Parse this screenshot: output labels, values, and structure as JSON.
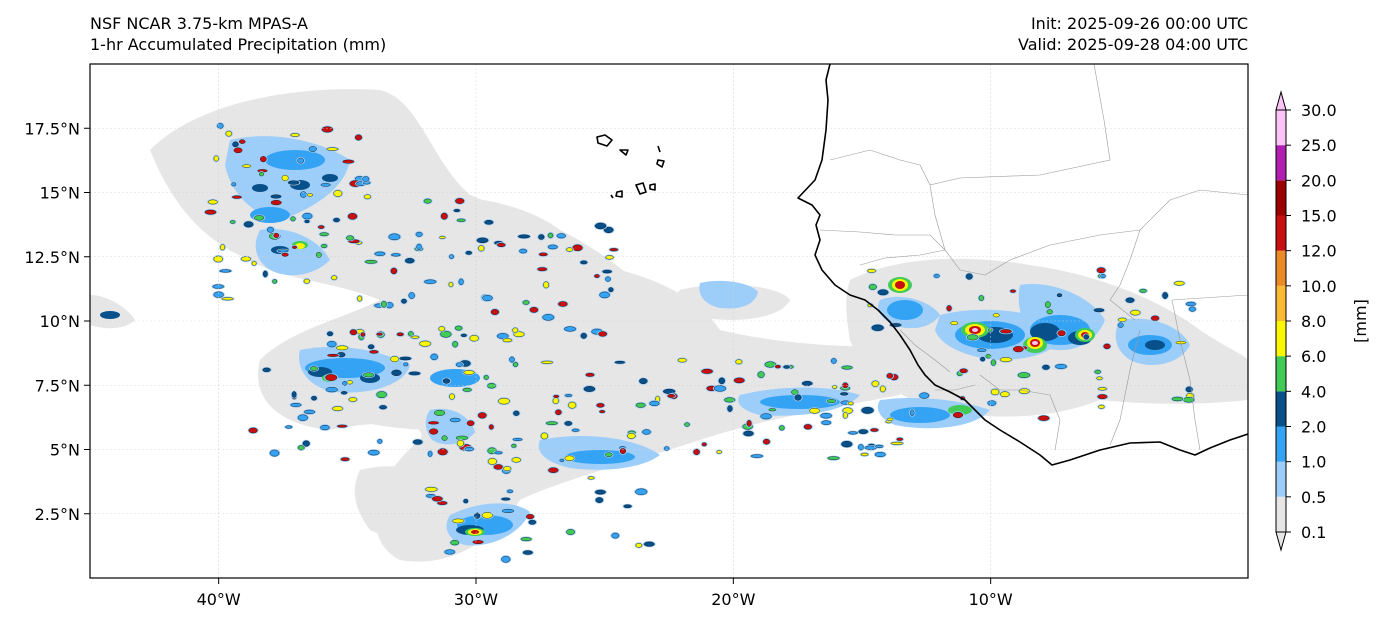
{
  "header": {
    "model_title": "NSF NCAR 3.75-km MPAS-A",
    "field_title": "1-hr Accumulated Precipitation (mm)",
    "init_time": "Init: 2025-09-26 00:00 UTC",
    "valid_time": "Valid: 2025-09-28 04:00 UTC"
  },
  "map": {
    "lon_range": [
      -45,
      0
    ],
    "lat_range": [
      0,
      20
    ],
    "x_ticks": [
      {
        "lon": -40,
        "label": "40°W"
      },
      {
        "lon": -30,
        "label": "30°W"
      },
      {
        "lon": -20,
        "label": "20°W"
      },
      {
        "lon": -10,
        "label": "10°W"
      }
    ],
    "y_ticks": [
      {
        "lat": 17.5,
        "label": "17.5°N"
      },
      {
        "lat": 15,
        "label": "15°N"
      },
      {
        "lat": 12.5,
        "label": "12.5°N"
      },
      {
        "lat": 10,
        "label": "10°N"
      },
      {
        "lat": 7.5,
        "label": "7.5°N"
      },
      {
        "lat": 5,
        "label": "5°N"
      },
      {
        "lat": 2.5,
        "label": "2.5°N"
      }
    ],
    "gridlines": true
  },
  "colorbar": {
    "label": "[mm]",
    "levels": [
      "0.1",
      "0.5",
      "1.0",
      "2.0",
      "4.0",
      "6.0",
      "8.0",
      "10.0",
      "12.0",
      "15.0",
      "20.0",
      "25.0",
      "30.0"
    ],
    "colors": [
      "#e6e6e6",
      "#9dcdf9",
      "#35a3f4",
      "#08508a",
      "#3fcb55",
      "#fbf700",
      "#fbb934",
      "#eb8b28",
      "#c81010",
      "#9a0000",
      "#b11fb2",
      "#fcc4f6"
    ],
    "extend": "both"
  }
}
